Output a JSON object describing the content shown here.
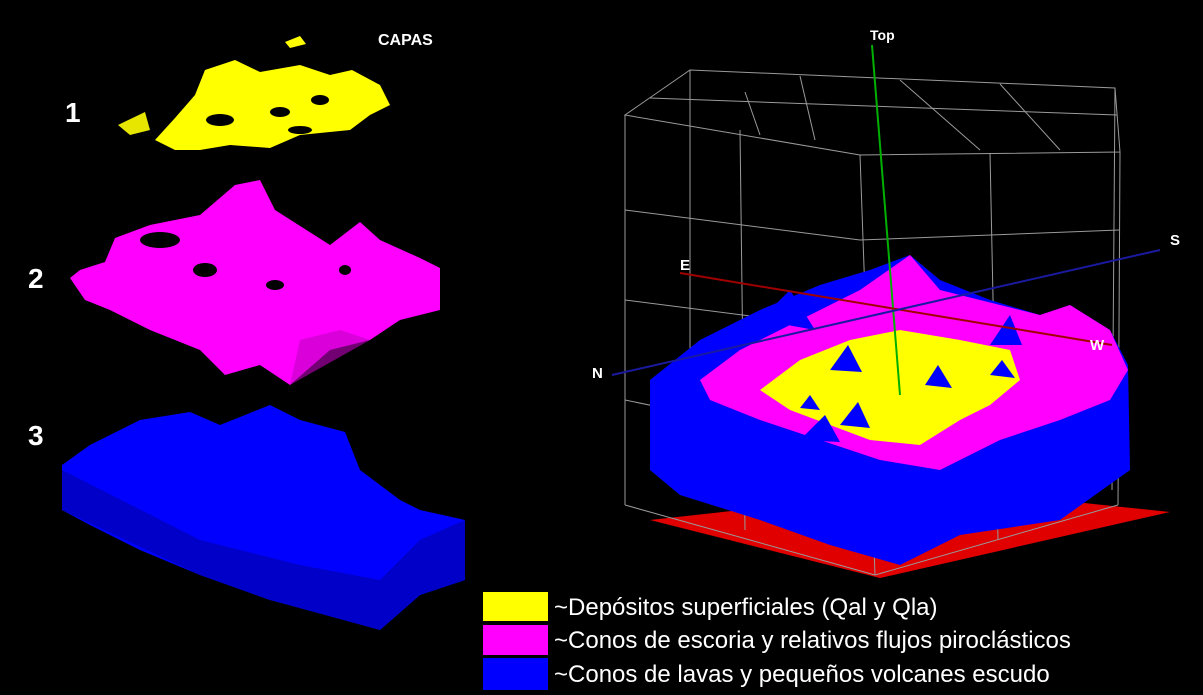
{
  "title": "CAPAS",
  "layers": [
    "1",
    "2",
    "3"
  ],
  "axes": {
    "top": "Top",
    "east": "E",
    "south": "S",
    "west": "W",
    "north": "N"
  },
  "legend": [
    "~Depósitos superficiales (Qal y Qla)",
    "~Conos de escoria y relativos flujos piroclásticos",
    "~Conos de lavas y pequeños volcanes escudo"
  ]
}
